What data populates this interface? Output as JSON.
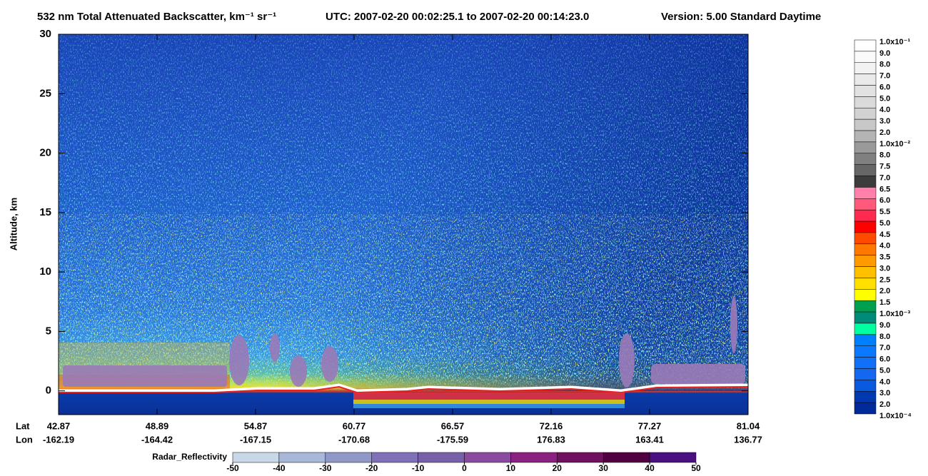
{
  "chart_data": {
    "type": "curtain",
    "title": "532 nm Total Attenuated Backscatter, km⁻¹ sr⁻¹",
    "subtitle": "UTC:  2007-02-20 00:02:25.1  to  2007-02-20 00:14:23.0",
    "version": "Version: 5.00  Standard  Daytime",
    "y_label": "Altitude, km",
    "ylim": [
      -2,
      30
    ],
    "yticks": [
      0,
      5,
      10,
      15,
      20,
      25,
      30
    ],
    "x_row_labels": [
      "Lat",
      "Lon"
    ],
    "lat": [
      42.87,
      48.89,
      54.87,
      60.77,
      66.57,
      72.16,
      77.27,
      81.04
    ],
    "lon": [
      -162.19,
      -164.42,
      -167.15,
      -170.68,
      -175.59,
      176.83,
      163.41,
      136.77
    ],
    "colorbar": {
      "labels": [
        "1.0x10⁻¹",
        "9.0",
        "8.0",
        "7.0",
        "6.0",
        "5.0",
        "4.0",
        "3.0",
        "2.0",
        "1.0x10⁻²",
        "8.0",
        "7.5",
        "7.0",
        "6.5",
        "6.0",
        "5.5",
        "5.0",
        "4.5",
        "4.0",
        "3.5",
        "3.0",
        "2.5",
        "2.0",
        "1.5",
        "1.0x10⁻³",
        "9.0",
        "8.0",
        "7.0",
        "6.0",
        "5.0",
        "4.0",
        "3.0",
        "2.0",
        "1.0x10⁻⁴"
      ],
      "colors": [
        "#ffffff",
        "#fafafa",
        "#f2f2f2",
        "#eaeaea",
        "#e2e2e2",
        "#dadada",
        "#d2d2d2",
        "#c8c8c8",
        "#b4b4b4",
        "#9a9a9a",
        "#808080",
        "#666666",
        "#3c3c3c",
        "#ff80a8",
        "#ff5a7a",
        "#ff2a50",
        "#ff0000",
        "#ff4a00",
        "#ff7800",
        "#ff9a00",
        "#ffc000",
        "#ffe000",
        "#ffff00",
        "#00a050",
        "#008a78",
        "#00ffa0",
        "#0080ff",
        "#0a78ff",
        "#1070f8",
        "#1468f0",
        "#0a5ae0",
        "#0038b0",
        "#002a9a"
      ]
    },
    "radar": {
      "label": "Radar_Reflectivity",
      "lim": [
        -50,
        50
      ],
      "ticks": [
        -50,
        -40,
        -30,
        -20,
        -10,
        0,
        10,
        20,
        30,
        40,
        50
      ],
      "colors": [
        "#c8d8e8",
        "#a8b8d8",
        "#9098c8",
        "#8070b8",
        "#7860a8",
        "#8a4aa0",
        "#8a2080",
        "#701060",
        "#500040",
        "#4a1080"
      ]
    }
  }
}
